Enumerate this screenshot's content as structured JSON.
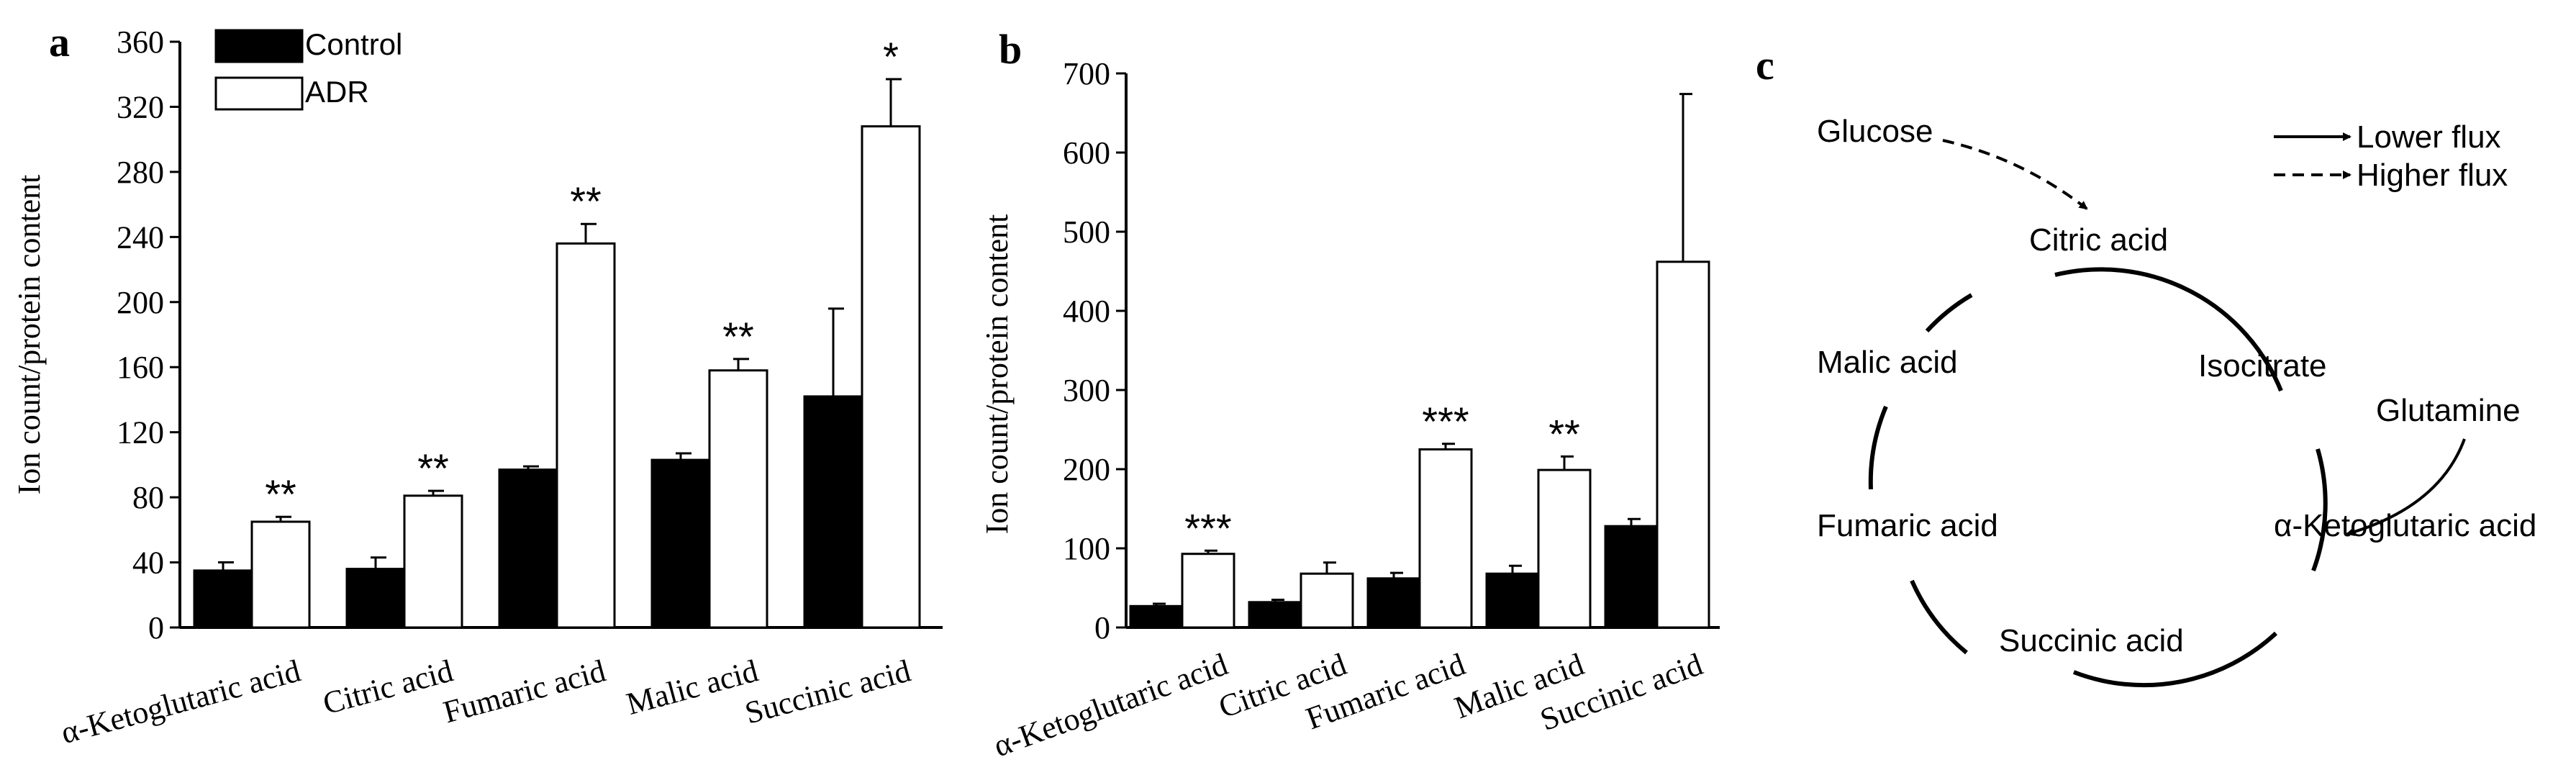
{
  "legend": {
    "control": "Control",
    "adr": "ADR"
  },
  "chart_data": [
    {
      "panel": "a",
      "type": "bar",
      "ylabel": "Ion count/protein content",
      "ylim": [
        0,
        360
      ],
      "yticks": [
        0,
        40,
        80,
        120,
        160,
        200,
        240,
        280,
        320,
        360
      ],
      "categories": [
        "α-Ketoglutaric acid",
        "Citric acid",
        "Fumaric acid",
        "Malic acid",
        "Succinic acid"
      ],
      "series": [
        {
          "name": "Control",
          "color": "#000000",
          "values": [
            35,
            36,
            97,
            103,
            142
          ],
          "errors": [
            5,
            7,
            2,
            4,
            54
          ]
        },
        {
          "name": "ADR",
          "color": "#ffffff",
          "values": [
            65,
            81,
            236,
            158,
            308
          ],
          "errors": [
            3,
            3,
            12,
            7,
            29
          ]
        }
      ],
      "significance": [
        "**",
        "**",
        "**",
        "**",
        "*"
      ]
    },
    {
      "panel": "b",
      "type": "bar",
      "ylabel": "Ion count/protein content",
      "ylim": [
        0,
        700
      ],
      "yticks": [
        0,
        100,
        200,
        300,
        400,
        500,
        600,
        700
      ],
      "categories": [
        "α-Ketoglutaric acid",
        "Citric acid",
        "Fumaric acid",
        "Malic acid",
        "Succinic acid"
      ],
      "series": [
        {
          "name": "Control",
          "color": "#000000",
          "values": [
            27,
            32,
            62,
            68,
            128
          ],
          "errors": [
            3,
            3,
            7,
            10,
            9
          ]
        },
        {
          "name": "ADR",
          "color": "#ffffff",
          "values": [
            93,
            68,
            225,
            199,
            462
          ],
          "errors": [
            4,
            14,
            7,
            17,
            212
          ]
        }
      ],
      "significance": [
        "***",
        "",
        "***",
        "**",
        ""
      ]
    }
  ],
  "pathway": {
    "panel": "c",
    "nodes": {
      "glucose": "Glucose",
      "citric": "Citric acid",
      "isocitrate": "Isocitrate",
      "glutamine": "Glutamine",
      "akg": "α-Ketoglutaric acid",
      "succinic": "Succinic acid",
      "fumaric": "Fumaric acid",
      "malic": "Malic acid"
    },
    "legend": {
      "lower": "Lower flux",
      "higher": "Higher flux"
    }
  }
}
